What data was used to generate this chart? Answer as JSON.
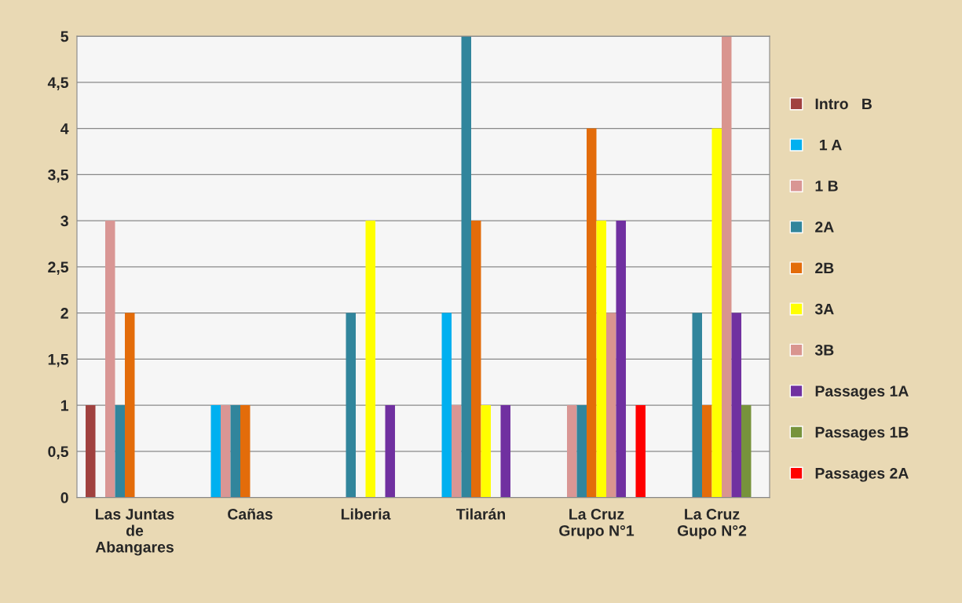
{
  "chart_data": {
    "type": "bar",
    "categories": [
      "Las Juntas\nde\nAbangares",
      "Cañas",
      "Liberia",
      "Tilarán",
      "La Cruz\nGrupo N°1",
      "La Cruz\nGupo N°2"
    ],
    "series": [
      {
        "name": "Intro   B",
        "color": "#a0413f",
        "values": [
          1,
          0,
          0,
          0,
          0,
          0
        ]
      },
      {
        "name": " 1 A",
        "color": "#00b0f0",
        "values": [
          0,
          1,
          0,
          2,
          0,
          0
        ]
      },
      {
        "name": "1 B",
        "color": "#d99694",
        "values": [
          3,
          1,
          0,
          1,
          1,
          0
        ]
      },
      {
        "name": "2A",
        "color": "#31859c",
        "values": [
          1,
          1,
          2,
          5,
          1,
          2
        ]
      },
      {
        "name": "2B",
        "color": "#e36c0a",
        "values": [
          2,
          1,
          0,
          3,
          4,
          1
        ]
      },
      {
        "name": "3A",
        "color": "#ffff00",
        "values": [
          0,
          0,
          3,
          1,
          3,
          4
        ]
      },
      {
        "name": "3B",
        "color": "#d9958f",
        "values": [
          0,
          0,
          0,
          0,
          2,
          5
        ]
      },
      {
        "name": "Passages 1A",
        "color": "#7030a0",
        "values": [
          0,
          0,
          1,
          1,
          3,
          2
        ]
      },
      {
        "name": "Passages 1B",
        "color": "#77933c",
        "values": [
          0,
          0,
          0,
          0,
          0,
          1
        ]
      },
      {
        "name": "Passages 2A",
        "color": "#ff0000",
        "values": [
          0,
          0,
          0,
          0,
          1,
          0
        ]
      }
    ],
    "ylim": [
      0,
      5
    ],
    "yticks": [
      0,
      {
        "value": 0.5,
        "label": "0,5"
      },
      1,
      {
        "value": 1.5,
        "label": "1,5"
      },
      2,
      {
        "value": 2.5,
        "label": "2,5"
      },
      3,
      {
        "value": 3.5,
        "label": "3,5"
      },
      4,
      {
        "value": 4.5,
        "label": "4,5"
      },
      5
    ],
    "grid": "y",
    "legend": "right"
  }
}
